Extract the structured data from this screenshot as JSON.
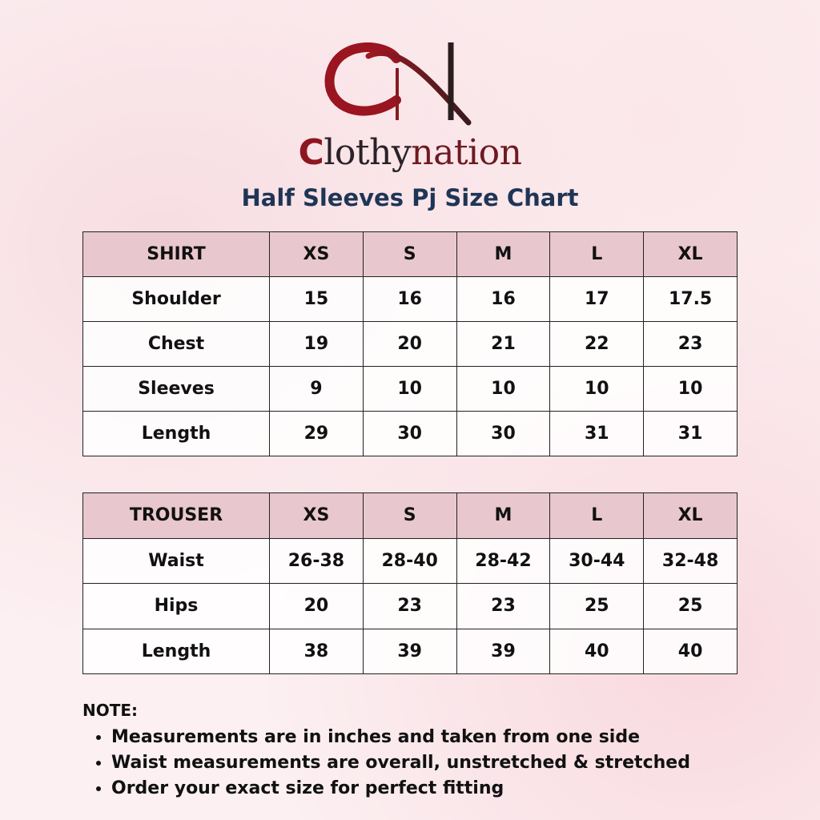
{
  "brand": {
    "parts": [
      "C",
      "lothy",
      "nation"
    ]
  },
  "title": "Half Sleeves Pj Size Chart",
  "tables": [
    {
      "header": [
        "SHIRT",
        "XS",
        "S",
        "M",
        "L",
        "XL"
      ],
      "rows": [
        [
          "Shoulder",
          15,
          16,
          16,
          17,
          17.5
        ],
        [
          "Chest",
          19,
          20,
          21,
          22,
          23
        ],
        [
          "Sleeves",
          9,
          10,
          10,
          10,
          10
        ],
        [
          "Length",
          29,
          30,
          30,
          31,
          31
        ]
      ]
    },
    {
      "header": [
        "TROUSER",
        "XS",
        "S",
        "M",
        "L",
        "XL"
      ],
      "rows": [
        [
          "Waist",
          "26-38",
          "28-40",
          "28-42",
          "30-44",
          "32-48"
        ],
        [
          "Hips",
          20,
          23,
          23,
          25,
          25
        ],
        [
          "Length",
          38,
          39,
          39,
          40,
          40
        ]
      ]
    }
  ],
  "note": {
    "title": "NOTE:",
    "items": [
      "Measurements are in inches and taken from one side",
      "Waist measurements are overall, unstretched & stretched",
      "Order your exact size for perfect fitting"
    ]
  }
}
